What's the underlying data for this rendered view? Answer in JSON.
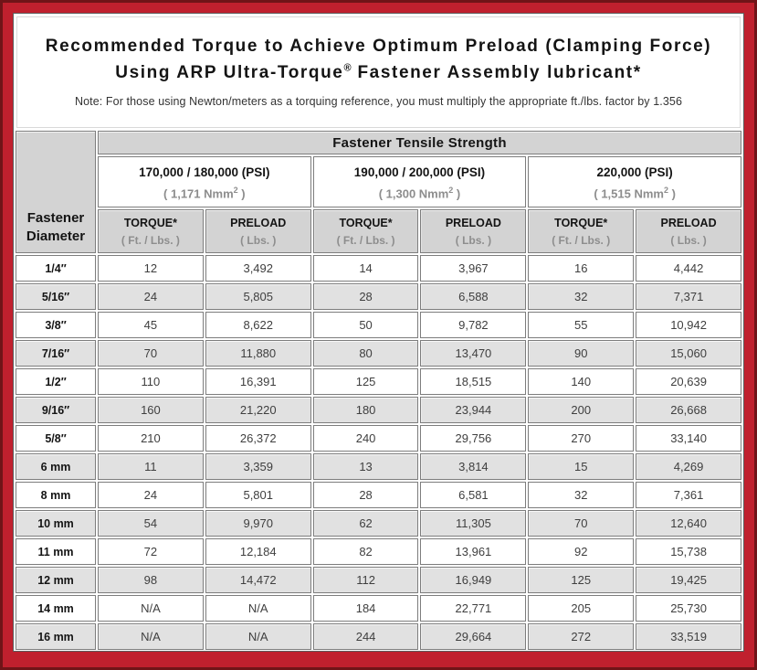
{
  "header": {
    "title_line1": "Recommended Torque to Achieve Optimum Preload (Clamping Force)",
    "title_line2_prefix": "Using ARP Ultra-Torque",
    "title_line2_sup": "®",
    "title_line2_suffix": " Fastener Assembly lubricant*",
    "note": "Note: For those using Newton/meters as a torquing reference, you must multiply the appropriate ft./lbs. factor by 1.356"
  },
  "colors": {
    "border_red": "#c0202e",
    "border_maroon": "#701418",
    "header_gray": "#d3d3d3",
    "row_alt_gray": "#e1e1e1",
    "cell_border": "#7d7d7d",
    "muted_text": "#8d8d8d"
  },
  "table": {
    "corner_header": "Fastener Diameter",
    "group_header": "Fastener Tensile Strength",
    "strength_groups": [
      {
        "psi": "170,000 / 180,000 (PSI)",
        "nmm_open": "( 1,171 Nmm",
        "nmm_sup": "2",
        "nmm_close": " )"
      },
      {
        "psi": "190,000 / 200,000 (PSI)",
        "nmm_open": "( 1,300 Nmm",
        "nmm_sup": "2",
        "nmm_close": " )"
      },
      {
        "psi": "220,000 (PSI)",
        "nmm_open": "( 1,515 Nmm",
        "nmm_sup": "2",
        "nmm_close": " )"
      }
    ],
    "column_headers": [
      {
        "label": "TORQUE*",
        "unit": "( Ft. / Lbs. )"
      },
      {
        "label": "PRELOAD",
        "unit": "( Lbs. )"
      },
      {
        "label": "TORQUE*",
        "unit": "( Ft. / Lbs. )"
      },
      {
        "label": "PRELOAD",
        "unit": "( Lbs. )"
      },
      {
        "label": "TORQUE*",
        "unit": "( Ft. / Lbs. )"
      },
      {
        "label": "PRELOAD",
        "unit": "( Lbs. )"
      }
    ],
    "rows": [
      {
        "diameter": "1/4″",
        "values": [
          "12",
          "3,492",
          "14",
          "3,967",
          "16",
          "4,442"
        ]
      },
      {
        "diameter": "5/16″",
        "values": [
          "24",
          "5,805",
          "28",
          "6,588",
          "32",
          "7,371"
        ]
      },
      {
        "diameter": "3/8″",
        "values": [
          "45",
          "8,622",
          "50",
          "9,782",
          "55",
          "10,942"
        ]
      },
      {
        "diameter": "7/16″",
        "values": [
          "70",
          "11,880",
          "80",
          "13,470",
          "90",
          "15,060"
        ]
      },
      {
        "diameter": "1/2″",
        "values": [
          "110",
          "16,391",
          "125",
          "18,515",
          "140",
          "20,639"
        ]
      },
      {
        "diameter": "9/16″",
        "values": [
          "160",
          "21,220",
          "180",
          "23,944",
          "200",
          "26,668"
        ]
      },
      {
        "diameter": "5/8″",
        "values": [
          "210",
          "26,372",
          "240",
          "29,756",
          "270",
          "33,140"
        ]
      },
      {
        "diameter": "6 mm",
        "values": [
          "11",
          "3,359",
          "13",
          "3,814",
          "15",
          "4,269"
        ]
      },
      {
        "diameter": "8 mm",
        "values": [
          "24",
          "5,801",
          "28",
          "6,581",
          "32",
          "7,361"
        ]
      },
      {
        "diameter": "10 mm",
        "values": [
          "54",
          "9,970",
          "62",
          "11,305",
          "70",
          "12,640"
        ]
      },
      {
        "diameter": "11 mm",
        "values": [
          "72",
          "12,184",
          "82",
          "13,961",
          "92",
          "15,738"
        ]
      },
      {
        "diameter": "12 mm",
        "values": [
          "98",
          "14,472",
          "112",
          "16,949",
          "125",
          "19,425"
        ]
      },
      {
        "diameter": "14 mm",
        "values": [
          "N/A",
          "N/A",
          "184",
          "22,771",
          "205",
          "25,730"
        ]
      },
      {
        "diameter": "16 mm",
        "values": [
          "N/A",
          "N/A",
          "244",
          "29,664",
          "272",
          "33,519"
        ]
      }
    ]
  }
}
